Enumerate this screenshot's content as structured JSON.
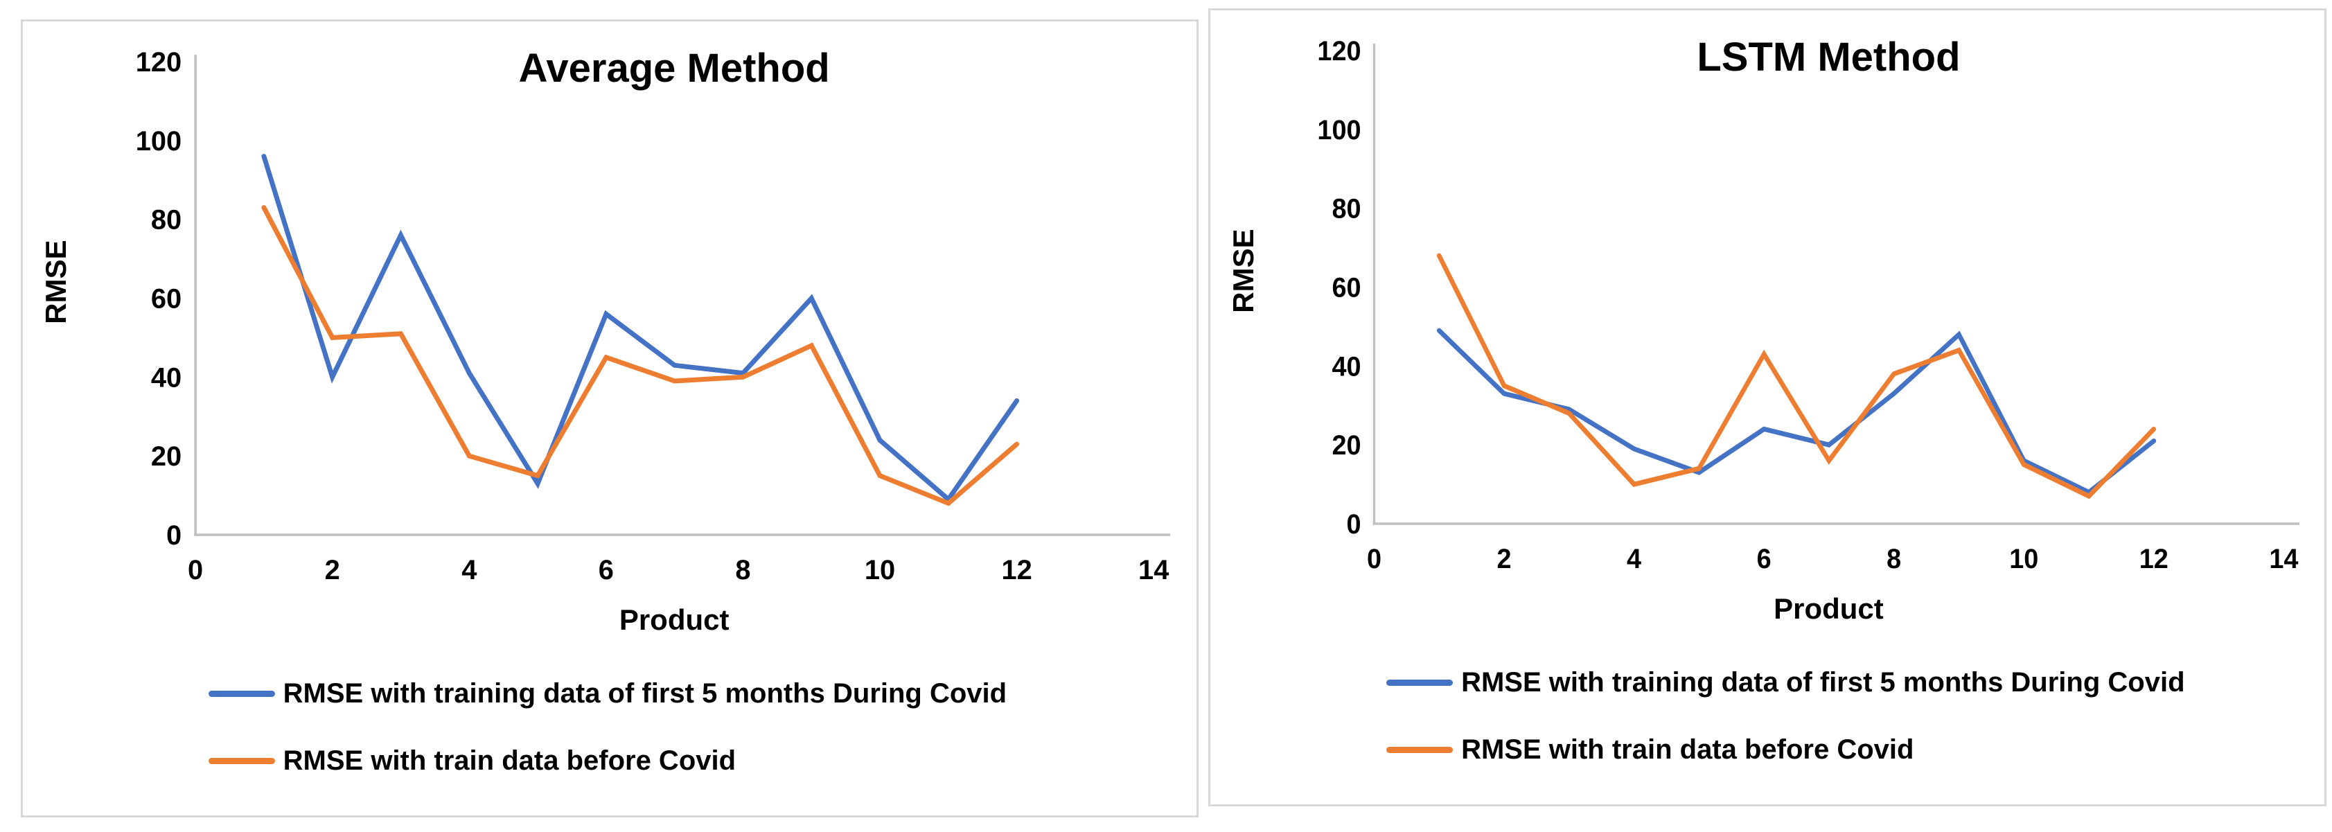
{
  "figure": {
    "background": "#ffffff",
    "panel_border_color": "#d9d9d9",
    "axis_line_color": "#bfbfbf",
    "text_color": "#000000"
  },
  "chart_data": [
    {
      "type": "line",
      "title": "Average Method",
      "xlabel": "Product",
      "ylabel": "RMSE",
      "xlim": [
        0,
        14
      ],
      "ylim": [
        0,
        120
      ],
      "x_ticks": [
        0,
        2,
        4,
        6,
        8,
        10,
        12,
        14
      ],
      "y_ticks": [
        0,
        20,
        40,
        60,
        80,
        100,
        120
      ],
      "grid": false,
      "legend_position": "below-left",
      "x": [
        1,
        2,
        3,
        4,
        5,
        6,
        7,
        8,
        9,
        10,
        11,
        12
      ],
      "series": [
        {
          "name": "RMSE with training data of first 5 months During Covid",
          "color": "#4472C4",
          "values": [
            96,
            40,
            76,
            41,
            13,
            56,
            43,
            41,
            60,
            24,
            9,
            34
          ]
        },
        {
          "name": "RMSE with train data before Covid",
          "color": "#ED7D31",
          "values": [
            83,
            50,
            51,
            20,
            15,
            45,
            39,
            40,
            48,
            15,
            8,
            23
          ]
        }
      ]
    },
    {
      "type": "line",
      "title": "LSTM Method",
      "xlabel": "Product",
      "ylabel": "RMSE",
      "xlim": [
        0,
        14
      ],
      "ylim": [
        0,
        120
      ],
      "x_ticks": [
        0,
        2,
        4,
        6,
        8,
        10,
        12,
        14
      ],
      "y_ticks": [
        0,
        20,
        40,
        60,
        80,
        100,
        120
      ],
      "grid": false,
      "legend_position": "below-left",
      "x": [
        1,
        2,
        3,
        4,
        5,
        6,
        7,
        8,
        9,
        10,
        11,
        12
      ],
      "series": [
        {
          "name": "RMSE with training data of first 5 months During Covid",
          "color": "#4472C4",
          "values": [
            49,
            33,
            29,
            19,
            13,
            24,
            20,
            33,
            48,
            16,
            8,
            21
          ]
        },
        {
          "name": "RMSE with train data before Covid",
          "color": "#ED7D31",
          "values": [
            68,
            35,
            28,
            10,
            14,
            43,
            16,
            38,
            44,
            15,
            7,
            24
          ]
        }
      ]
    }
  ]
}
